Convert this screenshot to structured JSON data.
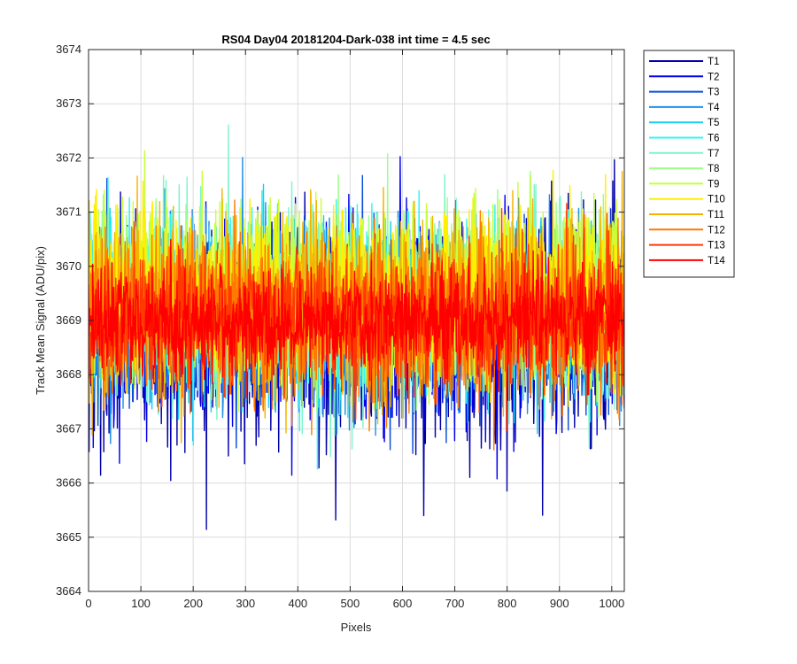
{
  "chart_data": {
    "type": "line",
    "title": "RS04 Day04 20181204-Dark-038 int time = 4.5 sec",
    "xlabel": "Pixels",
    "ylabel": "Track Mean Signal (ADU/pix)",
    "xlim": [
      0,
      1024
    ],
    "ylim": [
      3664,
      3674
    ],
    "xticks": [
      0,
      100,
      200,
      300,
      400,
      500,
      600,
      700,
      800,
      900,
      1000
    ],
    "yticks": [
      3664,
      3665,
      3666,
      3667,
      3668,
      3669,
      3670,
      3671,
      3672,
      3673,
      3674
    ],
    "grid": true,
    "legend_position": "outside-top-right",
    "n_points": 1024,
    "series": [
      {
        "name": "T1",
        "color": "#0000AA",
        "mean": 3668.8,
        "std": 0.95
      },
      {
        "name": "T2",
        "color": "#0000EE",
        "mean": 3668.9,
        "std": 0.85
      },
      {
        "name": "T3",
        "color": "#0A4FD8",
        "mean": 3669.0,
        "std": 0.8
      },
      {
        "name": "T4",
        "color": "#1E90E8",
        "mean": 3669.1,
        "std": 0.78
      },
      {
        "name": "T5",
        "color": "#17CDF0",
        "mean": 3669.1,
        "std": 0.78
      },
      {
        "name": "T6",
        "color": "#30F5F0",
        "mean": 3669.2,
        "std": 0.78
      },
      {
        "name": "T7",
        "color": "#7FF5C8",
        "mean": 3669.3,
        "std": 0.78
      },
      {
        "name": "T8",
        "color": "#9CFF8A",
        "mean": 3669.4,
        "std": 0.78
      },
      {
        "name": "T9",
        "color": "#C8FF3A",
        "mean": 3669.5,
        "std": 0.78
      },
      {
        "name": "T10",
        "color": "#FFF000",
        "mean": 3669.5,
        "std": 0.8
      },
      {
        "name": "T11",
        "color": "#F5B400",
        "mean": 3669.3,
        "std": 0.8
      },
      {
        "name": "T12",
        "color": "#FF7A00",
        "mean": 3669.1,
        "std": 0.75
      },
      {
        "name": "T13",
        "color": "#FF3A00",
        "mean": 3669.0,
        "std": 0.65
      },
      {
        "name": "T14",
        "color": "#FF0000",
        "mean": 3669.0,
        "std": 0.5
      }
    ]
  }
}
